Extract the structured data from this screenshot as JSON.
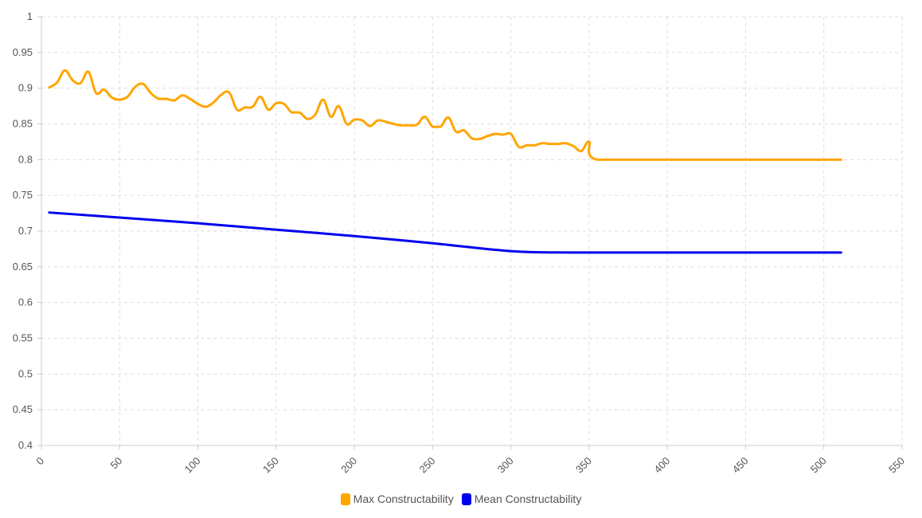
{
  "chart_data": {
    "type": "line",
    "title": "",
    "xlabel": "",
    "ylabel": "",
    "xlim": [
      0,
      550
    ],
    "ylim": [
      0.4,
      1
    ],
    "x_ticks": [
      0,
      50,
      100,
      150,
      200,
      250,
      300,
      350,
      400,
      450,
      500,
      550
    ],
    "y_ticks": [
      "0.4",
      "0.45",
      "0.5",
      "0.55",
      "0.6",
      "0.65",
      "0.7",
      "0.75",
      "0.8",
      "0.85",
      "0.9",
      "0.95",
      "1"
    ],
    "grid": true,
    "legend_position": "bottom-center",
    "series": [
      {
        "name": "Max Constructability",
        "color": "#FFA500",
        "points": [
          [
            5,
            0.901
          ],
          [
            10,
            0.908
          ],
          [
            15,
            0.925
          ],
          [
            20,
            0.911
          ],
          [
            25,
            0.907
          ],
          [
            30,
            0.923
          ],
          [
            35,
            0.893
          ],
          [
            40,
            0.898
          ],
          [
            45,
            0.887
          ],
          [
            50,
            0.884
          ],
          [
            55,
            0.888
          ],
          [
            60,
            0.902
          ],
          [
            65,
            0.906
          ],
          [
            70,
            0.893
          ],
          [
            75,
            0.885
          ],
          [
            80,
            0.885
          ],
          [
            85,
            0.883
          ],
          [
            90,
            0.89
          ],
          [
            95,
            0.885
          ],
          [
            100,
            0.878
          ],
          [
            105,
            0.874
          ],
          [
            110,
            0.88
          ],
          [
            115,
            0.891
          ],
          [
            120,
            0.894
          ],
          [
            125,
            0.87
          ],
          [
            130,
            0.873
          ],
          [
            135,
            0.874
          ],
          [
            140,
            0.888
          ],
          [
            145,
            0.87
          ],
          [
            150,
            0.879
          ],
          [
            155,
            0.878
          ],
          [
            160,
            0.866
          ],
          [
            165,
            0.866
          ],
          [
            170,
            0.857
          ],
          [
            175,
            0.863
          ],
          [
            180,
            0.884
          ],
          [
            185,
            0.86
          ],
          [
            190,
            0.875
          ],
          [
            195,
            0.85
          ],
          [
            200,
            0.856
          ],
          [
            205,
            0.855
          ],
          [
            210,
            0.847
          ],
          [
            215,
            0.855
          ],
          [
            220,
            0.853
          ],
          [
            225,
            0.85
          ],
          [
            230,
            0.848
          ],
          [
            235,
            0.848
          ],
          [
            240,
            0.849
          ],
          [
            245,
            0.86
          ],
          [
            250,
            0.846
          ],
          [
            255,
            0.846
          ],
          [
            260,
            0.859
          ],
          [
            265,
            0.839
          ],
          [
            270,
            0.841
          ],
          [
            275,
            0.83
          ],
          [
            280,
            0.829
          ],
          [
            285,
            0.833
          ],
          [
            290,
            0.836
          ],
          [
            295,
            0.835
          ],
          [
            300,
            0.836
          ],
          [
            305,
            0.818
          ],
          [
            310,
            0.82
          ],
          [
            315,
            0.82
          ],
          [
            320,
            0.823
          ],
          [
            325,
            0.822
          ],
          [
            330,
            0.822
          ],
          [
            335,
            0.823
          ],
          [
            340,
            0.819
          ],
          [
            345,
            0.812
          ],
          [
            350,
            0.825
          ],
          [
            355,
            0.8
          ],
          [
            400,
            0.8
          ],
          [
            450,
            0.8
          ],
          [
            511,
            0.8
          ]
        ]
      },
      {
        "name": "Mean Constructability",
        "color": "#0000EE",
        "points": [
          [
            5,
            0.726
          ],
          [
            50,
            0.719
          ],
          [
            100,
            0.711
          ],
          [
            150,
            0.702
          ],
          [
            200,
            0.693
          ],
          [
            250,
            0.683
          ],
          [
            300,
            0.672
          ],
          [
            340,
            0.67
          ],
          [
            400,
            0.67
          ],
          [
            450,
            0.67
          ],
          [
            511,
            0.67
          ]
        ]
      }
    ]
  }
}
